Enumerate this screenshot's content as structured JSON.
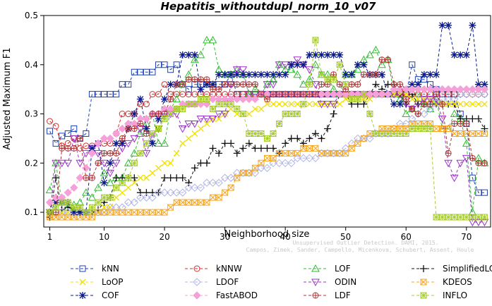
{
  "chart_data": {
    "type": "line",
    "title": "Hepatitis_withoutdupl_norm_10_v07",
    "xlabel": "Neighborhood size",
    "ylabel": "Adjusted Maximum F1",
    "xlim": [
      0,
      74
    ],
    "ylim": [
      0.07,
      0.5
    ],
    "xticks": [
      1,
      10,
      20,
      30,
      40,
      50,
      60,
      70
    ],
    "yticks": [
      0.1,
      0.2,
      0.3,
      0.4,
      0.5
    ],
    "grid": false,
    "legend_position": "bottom",
    "x": [
      1,
      2,
      3,
      4,
      5,
      6,
      7,
      8,
      9,
      10,
      11,
      12,
      13,
      14,
      15,
      16,
      17,
      18,
      19,
      20,
      21,
      22,
      23,
      24,
      25,
      26,
      27,
      28,
      29,
      30,
      31,
      32,
      33,
      34,
      35,
      36,
      37,
      38,
      39,
      40,
      41,
      42,
      43,
      44,
      45,
      46,
      47,
      48,
      49,
      50,
      51,
      52,
      53,
      54,
      55,
      56,
      57,
      58,
      59,
      60,
      61,
      62,
      63,
      64,
      65,
      66,
      67,
      68,
      69,
      70,
      71,
      72,
      73
    ],
    "series": [
      {
        "name": "kNN",
        "color": "#1c3fb5",
        "marker": "square",
        "dash": "4,3",
        "values": [
          0.265,
          0.24,
          0.255,
          0.26,
          0.27,
          0.25,
          0.26,
          0.34,
          0.34,
          0.34,
          0.34,
          0.34,
          0.36,
          0.36,
          0.385,
          0.385,
          0.385,
          0.385,
          0.4,
          0.4,
          0.39,
          0.4,
          0.36,
          0.35,
          0.36,
          0.36,
          0.36,
          0.36,
          0.36,
          0.36,
          0.38,
          0.34,
          0.34,
          0.34,
          0.34,
          0.34,
          0.34,
          0.34,
          0.34,
          0.34,
          0.34,
          0.34,
          0.34,
          0.34,
          0.34,
          0.34,
          0.34,
          0.34,
          0.34,
          0.34,
          0.34,
          0.34,
          0.34,
          0.34,
          0.34,
          0.34,
          0.34,
          0.34,
          0.34,
          0.34,
          0.4,
          0.37,
          0.37,
          0.36,
          0.35,
          0.34,
          0.34,
          0.34,
          0.3,
          0.28,
          0.17,
          0.14,
          0.14
        ]
      },
      {
        "name": "kNNW",
        "color": "#d42c2c",
        "marker": "circle",
        "dash": "4,3",
        "values": [
          0.285,
          0.275,
          0.235,
          0.24,
          0.25,
          0.23,
          0.235,
          0.235,
          0.24,
          0.24,
          0.24,
          0.26,
          0.3,
          0.3,
          0.3,
          0.32,
          0.32,
          0.34,
          0.34,
          0.36,
          0.34,
          0.34,
          0.34,
          0.34,
          0.34,
          0.34,
          0.34,
          0.34,
          0.34,
          0.34,
          0.34,
          0.34,
          0.34,
          0.34,
          0.34,
          0.34,
          0.34,
          0.34,
          0.34,
          0.34,
          0.34,
          0.34,
          0.34,
          0.34,
          0.34,
          0.34,
          0.34,
          0.34,
          0.34,
          0.34,
          0.34,
          0.34,
          0.34,
          0.34,
          0.34,
          0.34,
          0.34,
          0.34,
          0.34,
          0.34,
          0.34,
          0.34,
          0.34,
          0.34,
          0.34,
          0.34,
          0.34,
          0.34,
          0.34,
          0.34,
          0.34,
          0.34,
          0.34
        ]
      },
      {
        "name": "LOF",
        "color": "#2ebd2e",
        "marker": "triangle",
        "dash": "4,3",
        "values": [
          0.145,
          0.2,
          0.12,
          0.11,
          0.115,
          0.12,
          0.14,
          0.13,
          0.15,
          0.18,
          0.16,
          0.17,
          0.17,
          0.2,
          0.22,
          0.26,
          0.28,
          0.3,
          0.24,
          0.24,
          0.31,
          0.33,
          0.36,
          0.38,
          0.41,
          0.42,
          0.45,
          0.45,
          0.39,
          0.38,
          0.38,
          0.39,
          0.38,
          0.34,
          0.35,
          0.34,
          0.36,
          0.37,
          0.4,
          0.39,
          0.39,
          0.38,
          0.36,
          0.37,
          0.4,
          0.38,
          0.38,
          0.35,
          0.34,
          0.38,
          0.38,
          0.39,
          0.41,
          0.42,
          0.43,
          0.4,
          0.41,
          0.34,
          0.33,
          0.3,
          0.31,
          0.34,
          0.32,
          0.31,
          0.33,
          0.27,
          0.27,
          0.3,
          0.29,
          0.24,
          0.1,
          0.21,
          0.2
        ]
      },
      {
        "name": "SimplifiedLOF",
        "color": "#111111",
        "marker": "plus",
        "dash": "4,3",
        "values": [
          0.09,
          0.17,
          0.105,
          0.11,
          0.105,
          0.1,
          0.1,
          0.1,
          0.105,
          0.12,
          0.13,
          0.17,
          0.17,
          0.17,
          0.17,
          0.14,
          0.14,
          0.14,
          0.14,
          0.17,
          0.17,
          0.17,
          0.17,
          0.16,
          0.19,
          0.2,
          0.2,
          0.23,
          0.22,
          0.24,
          0.24,
          0.22,
          0.23,
          0.24,
          0.23,
          0.23,
          0.23,
          0.23,
          0.22,
          0.24,
          0.25,
          0.25,
          0.24,
          0.25,
          0.26,
          0.25,
          0.27,
          0.3,
          0.34,
          0.34,
          0.32,
          0.32,
          0.32,
          0.34,
          0.36,
          0.35,
          0.36,
          0.36,
          0.34,
          0.32,
          0.34,
          0.32,
          0.32,
          0.32,
          0.32,
          0.32,
          0.32,
          0.32,
          0.29,
          0.29,
          0.29,
          0.29,
          0.27
        ]
      },
      {
        "name": "LoOP",
        "color": "#f0e000",
        "marker": "cross",
        "dash": "4,3",
        "values": [
          0.09,
          0.09,
          0.1,
          0.1,
          0.11,
          0.11,
          0.1,
          0.1,
          0.1,
          0.11,
          0.11,
          0.13,
          0.14,
          0.15,
          0.16,
          0.17,
          0.17,
          0.18,
          0.19,
          0.2,
          0.2,
          0.22,
          0.24,
          0.25,
          0.26,
          0.27,
          0.28,
          0.29,
          0.29,
          0.3,
          0.31,
          0.3,
          0.3,
          0.3,
          0.31,
          0.31,
          0.32,
          0.32,
          0.32,
          0.32,
          0.32,
          0.32,
          0.32,
          0.32,
          0.32,
          0.32,
          0.32,
          0.32,
          0.32,
          0.33,
          0.33,
          0.33,
          0.33,
          0.33,
          0.34,
          0.34,
          0.34,
          0.34,
          0.34,
          0.34,
          0.33,
          0.33,
          0.33,
          0.33,
          0.32,
          0.32,
          0.32,
          0.32,
          0.32,
          0.32,
          0.32,
          0.32,
          0.32
        ]
      },
      {
        "name": "LDOF",
        "color": "#b0b4e6",
        "marker": "diamond",
        "dash": "4,3",
        "values": [
          0.1,
          0.1,
          0.1,
          0.1,
          0.1,
          0.1,
          0.1,
          0.1,
          0.1,
          0.1,
          0.11,
          0.11,
          0.11,
          0.12,
          0.12,
          0.13,
          0.13,
          0.13,
          0.14,
          0.14,
          0.14,
          0.14,
          0.14,
          0.15,
          0.15,
          0.15,
          0.16,
          0.16,
          0.16,
          0.17,
          0.17,
          0.18,
          0.18,
          0.18,
          0.18,
          0.19,
          0.19,
          0.2,
          0.2,
          0.2,
          0.2,
          0.21,
          0.21,
          0.21,
          0.21,
          0.22,
          0.22,
          0.22,
          0.22,
          0.23,
          0.24,
          0.25,
          0.25,
          0.25,
          0.26,
          0.26,
          0.26,
          0.27,
          0.28,
          0.28,
          0.29,
          0.3,
          0.3,
          0.31,
          0.32,
          0.33,
          0.33,
          0.33,
          0.34,
          0.34,
          0.34,
          0.34,
          0.34
        ]
      },
      {
        "name": "ODIN",
        "color": "#9b32c8",
        "marker": "triangle-down",
        "dash": "4,3",
        "values": [
          0.1,
          0.2,
          0.2,
          0.2,
          0.25,
          0.2,
          0.22,
          0.23,
          0.22,
          0.2,
          0.18,
          0.2,
          0.23,
          0.24,
          0.25,
          0.27,
          0.22,
          0.26,
          0.27,
          0.3,
          0.3,
          0.3,
          0.27,
          0.28,
          0.28,
          0.29,
          0.29,
          0.29,
          0.3,
          0.3,
          0.36,
          0.39,
          0.39,
          0.34,
          0.34,
          0.34,
          0.36,
          0.36,
          0.4,
          0.4,
          0.4,
          0.41,
          0.4,
          0.39,
          0.36,
          0.32,
          0.32,
          0.32,
          0.34,
          0.34,
          0.34,
          0.34,
          0.34,
          0.34,
          0.34,
          0.34,
          0.34,
          0.34,
          0.34,
          0.32,
          0.31,
          0.32,
          0.33,
          0.33,
          0.33,
          0.29,
          0.2,
          0.17,
          0.2,
          0.21,
          0.08,
          0.08,
          0.08
        ]
      },
      {
        "name": "KDEOS",
        "color": "#f5a623",
        "marker": "square-x",
        "dash": "4,3",
        "values": [
          0.09,
          0.09,
          0.09,
          0.09,
          0.09,
          0.09,
          0.09,
          0.09,
          0.1,
          0.1,
          0.1,
          0.1,
          0.1,
          0.1,
          0.1,
          0.1,
          0.1,
          0.1,
          0.1,
          0.1,
          0.11,
          0.12,
          0.12,
          0.12,
          0.12,
          0.12,
          0.12,
          0.13,
          0.13,
          0.14,
          0.15,
          0.17,
          0.18,
          0.18,
          0.19,
          0.2,
          0.21,
          0.21,
          0.22,
          0.22,
          0.22,
          0.22,
          0.23,
          0.23,
          0.23,
          0.22,
          0.22,
          0.22,
          0.22,
          0.22,
          0.23,
          0.24,
          0.25,
          0.26,
          0.26,
          0.27,
          0.27,
          0.27,
          0.27,
          0.27,
          0.28,
          0.28,
          0.28,
          0.28,
          0.27,
          0.27,
          0.27,
          0.26,
          0.26,
          0.26,
          0.26,
          0.26,
          0.26
        ]
      },
      {
        "name": "COF",
        "color": "#0a1a8c",
        "marker": "star",
        "dash": "4,3",
        "values": [
          0.1,
          0.12,
          0.12,
          0.12,
          0.1,
          0.1,
          0.1,
          0.23,
          0.24,
          0.16,
          0.2,
          0.24,
          0.24,
          0.27,
          0.3,
          0.33,
          0.27,
          0.24,
          0.29,
          0.33,
          0.36,
          0.36,
          0.42,
          0.42,
          0.42,
          0.35,
          0.36,
          0.36,
          0.38,
          0.38,
          0.38,
          0.38,
          0.38,
          0.38,
          0.38,
          0.38,
          0.38,
          0.38,
          0.38,
          0.38,
          0.4,
          0.4,
          0.4,
          0.42,
          0.42,
          0.42,
          0.42,
          0.42,
          0.42,
          0.38,
          0.38,
          0.4,
          0.4,
          0.38,
          0.38,
          0.38,
          0.34,
          0.32,
          0.32,
          0.35,
          0.36,
          0.36,
          0.38,
          0.38,
          0.38,
          0.48,
          0.48,
          0.42,
          0.42,
          0.42,
          0.48,
          0.36,
          0.36
        ]
      },
      {
        "name": "FastABOD",
        "color": "#f5a0d8",
        "marker": "diamond-filled",
        "dash": "4,3",
        "values": [
          0.12,
          0.13,
          0.13,
          0.14,
          0.15,
          0.17,
          0.19,
          0.22,
          0.24,
          0.25,
          0.25,
          0.26,
          0.27,
          0.28,
          0.28,
          0.29,
          0.29,
          0.3,
          0.3,
          0.31,
          0.31,
          0.31,
          0.32,
          0.32,
          0.32,
          0.32,
          0.32,
          0.33,
          0.33,
          0.33,
          0.33,
          0.33,
          0.33,
          0.33,
          0.33,
          0.34,
          0.34,
          0.34,
          0.34,
          0.34,
          0.34,
          0.34,
          0.34,
          0.34,
          0.34,
          0.34,
          0.34,
          0.34,
          0.34,
          0.34,
          0.34,
          0.34,
          0.34,
          0.34,
          0.34,
          0.34,
          0.34,
          0.35,
          0.35,
          0.35,
          0.35,
          0.35,
          0.35,
          0.35,
          0.35,
          0.35,
          0.35,
          0.35,
          0.35,
          0.35,
          0.35,
          0.35,
          0.35
        ]
      },
      {
        "name": "LDF",
        "color": "#b03434",
        "marker": "circle-plus",
        "dash": "4,3",
        "values": [
          0.1,
          0.1,
          0.23,
          0.23,
          0.23,
          0.25,
          0.17,
          0.17,
          0.2,
          0.22,
          0.22,
          0.22,
          0.25,
          0.27,
          0.27,
          0.28,
          0.26,
          0.3,
          0.3,
          0.3,
          0.33,
          0.36,
          0.36,
          0.37,
          0.37,
          0.37,
          0.37,
          0.35,
          0.35,
          0.36,
          0.36,
          0.36,
          0.36,
          0.36,
          0.36,
          0.34,
          0.33,
          0.34,
          0.34,
          0.34,
          0.34,
          0.34,
          0.34,
          0.34,
          0.34,
          0.36,
          0.36,
          0.38,
          0.36,
          0.35,
          0.36,
          0.36,
          0.38,
          0.38,
          0.38,
          0.41,
          0.41,
          0.36,
          0.36,
          0.33,
          0.31,
          0.3,
          0.32,
          0.32,
          0.34,
          0.32,
          0.22,
          0.28,
          0.28,
          0.28,
          0.21,
          0.2,
          0.2
        ]
      },
      {
        "name": "INFLO",
        "color": "#a6cc2a",
        "marker": "square-star",
        "dash": "4,3",
        "values": [
          0.1,
          0.11,
          0.12,
          0.12,
          0.11,
          0.11,
          0.1,
          0.11,
          0.12,
          0.13,
          0.13,
          0.15,
          0.16,
          0.17,
          0.2,
          0.22,
          0.24,
          0.26,
          0.27,
          0.29,
          0.3,
          0.31,
          0.31,
          0.32,
          0.32,
          0.33,
          0.33,
          0.31,
          0.32,
          0.32,
          0.32,
          0.31,
          0.3,
          0.26,
          0.26,
          0.26,
          0.25,
          0.26,
          0.28,
          0.3,
          0.3,
          0.3,
          0.32,
          0.36,
          0.45,
          0.38,
          0.37,
          0.37,
          0.4,
          0.36,
          0.33,
          0.33,
          0.34,
          0.3,
          0.26,
          0.26,
          0.26,
          0.26,
          0.26,
          0.26,
          0.27,
          0.27,
          0.27,
          0.27,
          0.09,
          0.09,
          0.09,
          0.09,
          0.09,
          0.09,
          0.09,
          0.09,
          0.09
        ]
      }
    ],
    "watermark": "Campos, Zimek, Sander, Campello, Micenkova, Schubert, Assent, Houle",
    "watermark_line1": "Unsupervised Outlier Detection. DAMI, 2015."
  }
}
